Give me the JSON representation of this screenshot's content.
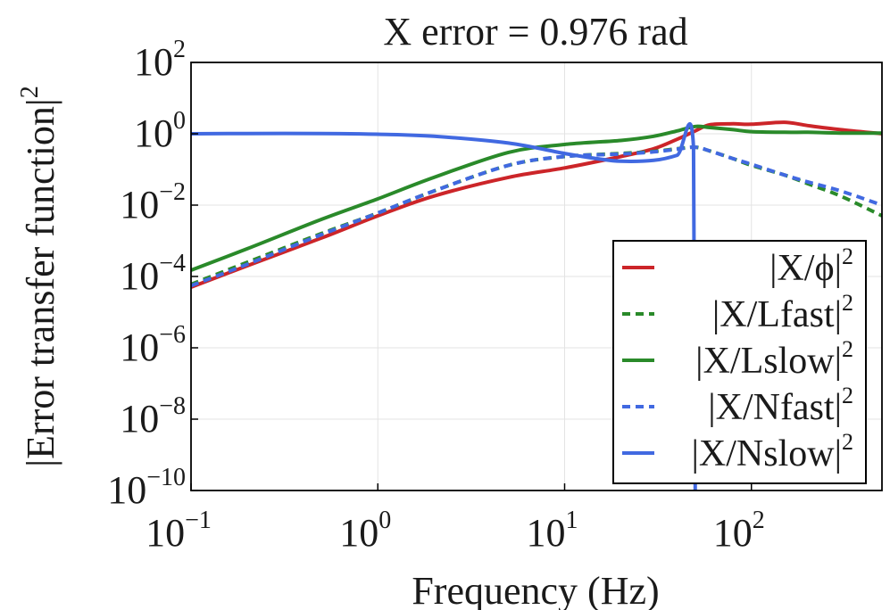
{
  "chart_data": {
    "type": "line",
    "title": "X error = 0.976 rad",
    "xlabel": "Frequency (Hz)",
    "ylabel": "|Error transfer function|",
    "ylabel_sup": "2",
    "xscale": "log",
    "yscale": "log",
    "xlim": [
      0.1,
      500
    ],
    "ylim": [
      1e-10,
      100
    ],
    "grid": true,
    "legend_position": "bottom-right",
    "x_ticks": [
      {
        "value": 0.1,
        "base": "10",
        "exp": "−1"
      },
      {
        "value": 1,
        "base": "10",
        "exp": "0"
      },
      {
        "value": 10,
        "base": "10",
        "exp": "1"
      },
      {
        "value": 100,
        "base": "10",
        "exp": "2"
      }
    ],
    "y_ticks": [
      {
        "value": 100,
        "base": "10",
        "exp": "2"
      },
      {
        "value": 1,
        "base": "10",
        "exp": "0"
      },
      {
        "value": 0.01,
        "base": "10",
        "exp": "−2"
      },
      {
        "value": 0.0001,
        "base": "10",
        "exp": "−4"
      },
      {
        "value": 1e-06,
        "base": "10",
        "exp": "−6"
      },
      {
        "value": 1e-08,
        "base": "10",
        "exp": "−8"
      },
      {
        "value": 1e-10,
        "base": "10",
        "exp": "−10"
      }
    ],
    "series": [
      {
        "name": "|X/ϕ|",
        "sup": "2",
        "color": "#cc2529",
        "dash": "solid",
        "x": [
          0.1,
          0.2,
          0.5,
          1,
          2,
          5,
          10,
          20,
          30,
          40,
          50,
          60,
          80,
          100,
          150,
          200,
          300,
          500
        ],
        "y": [
          5e-05,
          0.0002,
          0.0012,
          0.005,
          0.018,
          0.06,
          0.11,
          0.23,
          0.38,
          0.7,
          1.2,
          1.8,
          1.9,
          1.85,
          2.1,
          1.7,
          1.3,
          1.0
        ]
      },
      {
        "name": "|X/Lfast|",
        "sup": "2",
        "color": "#2a8a2a",
        "dash": "dashed",
        "x": [
          0.1,
          0.2,
          0.5,
          1,
          2,
          5,
          10,
          20,
          30,
          40,
          50,
          60,
          80,
          100,
          150,
          200,
          300,
          500
        ],
        "y": [
          6e-05,
          0.00025,
          0.0016,
          0.006,
          0.025,
          0.13,
          0.23,
          0.28,
          0.32,
          0.38,
          0.42,
          0.33,
          0.2,
          0.13,
          0.07,
          0.04,
          0.018,
          0.005
        ]
      },
      {
        "name": "|X/Lslow|",
        "sup": "2",
        "color": "#2a8a2a",
        "dash": "solid",
        "x": [
          0.1,
          0.2,
          0.5,
          1,
          2,
          5,
          10,
          20,
          30,
          40,
          50,
          60,
          80,
          100,
          150,
          200,
          300,
          500
        ],
        "y": [
          0.00015,
          0.0006,
          0.004,
          0.015,
          0.06,
          0.3,
          0.5,
          0.65,
          0.85,
          1.2,
          1.6,
          1.5,
          1.3,
          1.15,
          1.1,
          1.1,
          1.05,
          1.05
        ]
      },
      {
        "name": "|X/Nfast|",
        "sup": "2",
        "color": "#4169e1",
        "dash": "dashed",
        "x": [
          0.1,
          0.2,
          0.5,
          1,
          2,
          5,
          10,
          20,
          30,
          40,
          50,
          60,
          80,
          100,
          150,
          200,
          300,
          500
        ],
        "y": [
          5.5e-05,
          0.00022,
          0.0015,
          0.006,
          0.025,
          0.13,
          0.23,
          0.27,
          0.31,
          0.37,
          0.42,
          0.33,
          0.2,
          0.14,
          0.07,
          0.045,
          0.025,
          0.01
        ]
      },
      {
        "name": "|X/Nslow|",
        "sup": "2",
        "color": "#4169e1",
        "dash": "solid",
        "x": [
          0.1,
          0.2,
          0.5,
          1,
          2,
          5,
          10,
          15,
          20,
          30,
          40,
          49,
          50
        ],
        "y": [
          1.0,
          1.02,
          1.02,
          0.97,
          0.85,
          0.55,
          0.28,
          0.2,
          0.17,
          0.18,
          0.25,
          0.42,
          1e-10
        ]
      }
    ]
  }
}
